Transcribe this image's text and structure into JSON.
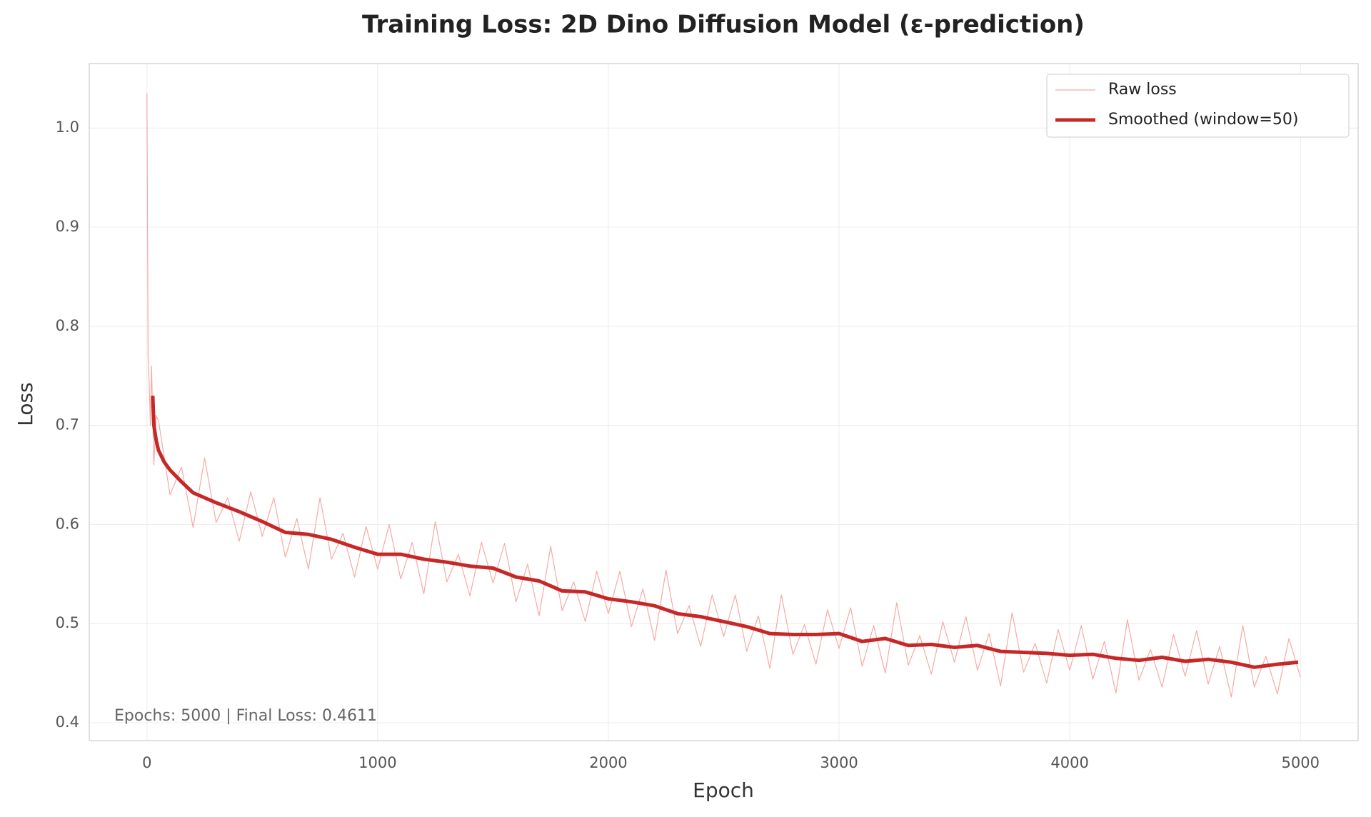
{
  "chart_data": {
    "type": "line",
    "title": "Training Loss: 2D Dino Diffusion Model (ε-prediction)",
    "x_label": "Epoch",
    "y_label": "Loss",
    "annotation": "Epochs: 5000 | Final Loss: 0.4611",
    "xlim": [
      -250,
      5250
    ],
    "ylim": [
      0.382,
      1.065
    ],
    "xticks": [
      0,
      1000,
      2000,
      3000,
      4000,
      5000
    ],
    "yticks": [
      0.4,
      0.5,
      0.6,
      0.7,
      0.8,
      0.9,
      {
        "value": 1.0,
        "label": "1.0"
      }
    ],
    "grid": true,
    "legend": "upper right",
    "series": [
      {
        "name": "Raw loss",
        "color": "#f5aaa4",
        "x": [
          0,
          5,
          10,
          15,
          20,
          30,
          40,
          50,
          100,
          150,
          200,
          250,
          300,
          350,
          400,
          450,
          500,
          550,
          600,
          650,
          700,
          750,
          800,
          850,
          900,
          950,
          1000,
          1050,
          1100,
          1150,
          1200,
          1250,
          1300,
          1350,
          1400,
          1450,
          1500,
          1550,
          1600,
          1650,
          1700,
          1750,
          1800,
          1850,
          1900,
          1950,
          2000,
          2050,
          2100,
          2150,
          2200,
          2250,
          2300,
          2350,
          2400,
          2450,
          2500,
          2550,
          2600,
          2650,
          2700,
          2750,
          2800,
          2850,
          2900,
          2950,
          3000,
          3050,
          3100,
          3150,
          3200,
          3250,
          3300,
          3350,
          3400,
          3450,
          3500,
          3550,
          3600,
          3650,
          3700,
          3750,
          3800,
          3850,
          3900,
          3950,
          4000,
          4050,
          4100,
          4150,
          4200,
          4250,
          4300,
          4350,
          4400,
          4450,
          4500,
          4550,
          4600,
          4650,
          4700,
          4750,
          4800,
          4850,
          4900,
          4950,
          5000
        ],
        "values": [
          1.035,
          0.77,
          0.74,
          0.7,
          0.76,
          0.66,
          0.71,
          0.705,
          0.63,
          0.658,
          0.597,
          0.667,
          0.602,
          0.627,
          0.583,
          0.633,
          0.588,
          0.627,
          0.567,
          0.606,
          0.555,
          0.627,
          0.565,
          0.591,
          0.547,
          0.598,
          0.555,
          0.6,
          0.545,
          0.582,
          0.53,
          0.603,
          0.542,
          0.57,
          0.528,
          0.582,
          0.541,
          0.581,
          0.522,
          0.56,
          0.508,
          0.578,
          0.513,
          0.542,
          0.502,
          0.553,
          0.51,
          0.553,
          0.497,
          0.535,
          0.483,
          0.554,
          0.49,
          0.518,
          0.477,
          0.529,
          0.487,
          0.529,
          0.472,
          0.508,
          0.455,
          0.529,
          0.469,
          0.499,
          0.459,
          0.514,
          0.475,
          0.516,
          0.457,
          0.498,
          0.45,
          0.521,
          0.458,
          0.488,
          0.449,
          0.502,
          0.461,
          0.507,
          0.453,
          0.49,
          0.437,
          0.511,
          0.451,
          0.48,
          0.44,
          0.494,
          0.453,
          0.498,
          0.444,
          0.482,
          0.43,
          0.504,
          0.443,
          0.474,
          0.436,
          0.489,
          0.447,
          0.493,
          0.439,
          0.477,
          0.426,
          0.498,
          0.436,
          0.467,
          0.429,
          0.485,
          0.446
        ]
      },
      {
        "name": "Smoothed (window=50)",
        "color": "#c62828",
        "x": [
          25,
          30,
          40,
          50,
          75,
          100,
          150,
          200,
          300,
          400,
          500,
          600,
          700,
          800,
          900,
          1000,
          1100,
          1200,
          1300,
          1400,
          1500,
          1600,
          1700,
          1800,
          1900,
          2000,
          2100,
          2200,
          2300,
          2400,
          2500,
          2600,
          2700,
          2800,
          2900,
          3000,
          3100,
          3200,
          3300,
          3400,
          3500,
          3600,
          3700,
          3800,
          3900,
          4000,
          4100,
          4200,
          4300,
          4400,
          4500,
          4600,
          4700,
          4800,
          4900,
          4990
        ],
        "values": [
          0.73,
          0.7,
          0.685,
          0.675,
          0.663,
          0.655,
          0.643,
          0.632,
          0.622,
          0.613,
          0.603,
          0.592,
          0.59,
          0.585,
          0.577,
          0.57,
          0.57,
          0.565,
          0.562,
          0.558,
          0.556,
          0.547,
          0.543,
          0.533,
          0.532,
          0.525,
          0.522,
          0.518,
          0.51,
          0.507,
          0.502,
          0.497,
          0.49,
          0.489,
          0.489,
          0.49,
          0.482,
          0.485,
          0.478,
          0.479,
          0.476,
          0.478,
          0.472,
          0.471,
          0.47,
          0.468,
          0.469,
          0.465,
          0.463,
          0.466,
          0.462,
          0.464,
          0.461,
          0.456,
          0.459,
          0.461
        ]
      }
    ]
  }
}
